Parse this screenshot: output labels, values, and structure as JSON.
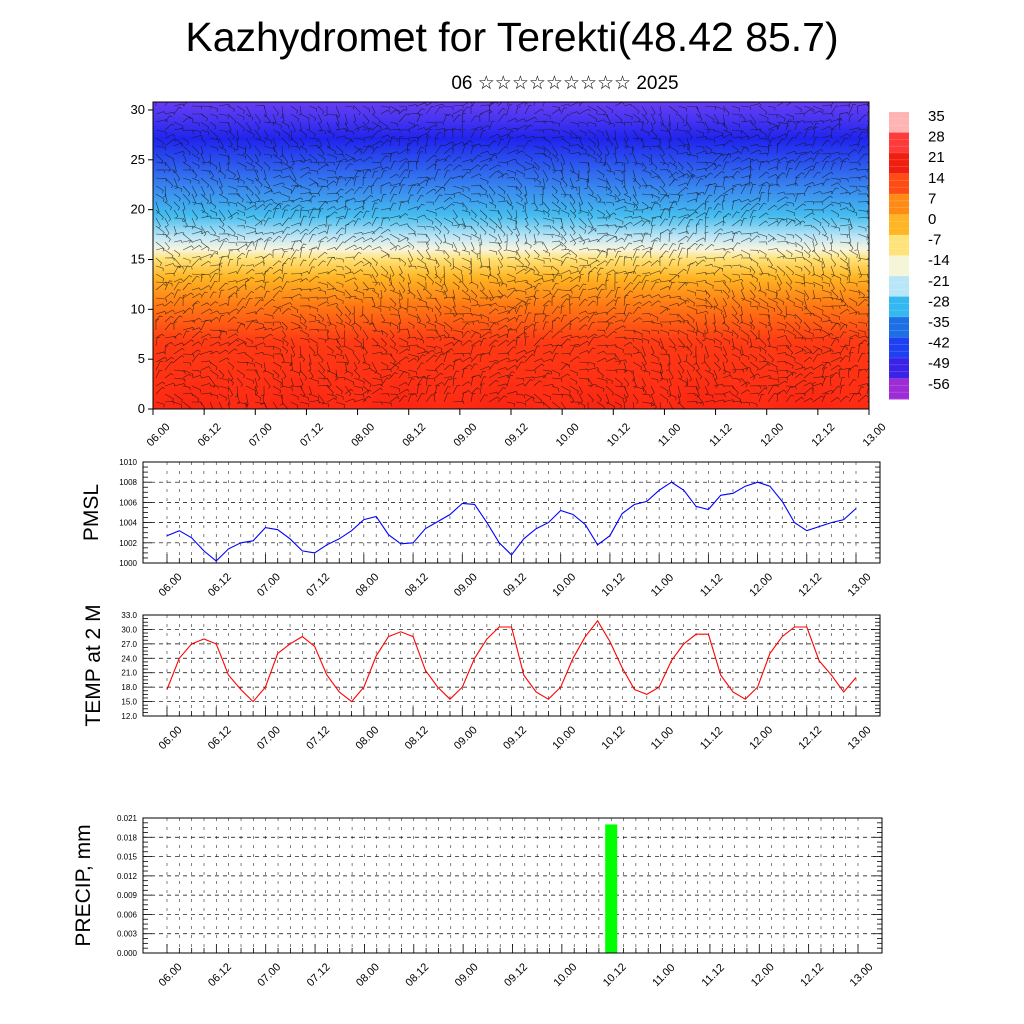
{
  "title": "Kazhydromet for Terekti(48.42 85.7)",
  "subtitle": "06 ☆☆☆☆☆☆☆☆☆ 2025",
  "chart_data": [
    {
      "type": "heatmap",
      "name": "temperature-wind cross section",
      "x_tick_labels": [
        "06.00",
        "06.12",
        "07.00",
        "07.12",
        "08.00",
        "08.12",
        "09.00",
        "09.12",
        "10.00",
        "10.12",
        "11.00",
        "11.12",
        "12.00",
        "12.12",
        "13.00"
      ],
      "y_ticks": [
        0,
        5,
        10,
        15,
        20,
        25,
        30
      ],
      "ylim": [
        0,
        30.8
      ],
      "colorbar_labels": [
        "35",
        "28",
        "21",
        "14",
        "7",
        "0",
        "-7",
        "-14",
        "-21",
        "-28",
        "-35",
        "-42",
        "-49",
        "-56"
      ],
      "colorbar_colors": [
        "#ffb3b3",
        "#ff3a3a",
        "#ef1e0e",
        "#ff4c14",
        "#ff8a14",
        "#ffb524",
        "#ffe37a",
        "#f5f5d8",
        "#b8e6f7",
        "#33b8ef",
        "#1e6ee6",
        "#1f3ff2",
        "#3a22e6",
        "#9d2bd6"
      ]
    },
    {
      "type": "line",
      "ylabel": "PMSL",
      "ylim": [
        1000,
        1010
      ],
      "y_tick_labels": [
        "1000",
        "1002",
        "1004",
        "1006",
        "1008",
        "1010"
      ],
      "x_tick_labels": [
        "06.00",
        "06.12",
        "07.00",
        "07.12",
        "08.00",
        "08.12",
        "09.00",
        "09.12",
        "10.00",
        "10.12",
        "11.00",
        "11.12",
        "12.00",
        "12.12",
        "13.00"
      ],
      "series": [
        {
          "color": "#0000ff",
          "values": [
            1002.7,
            1003.2,
            1002.5,
            1001.2,
            1000.2,
            1001.4,
            1002.0,
            1002.2,
            1003.5,
            1003.3,
            1002.4,
            1001.2,
            1001.0,
            1001.8,
            1002.4,
            1003.2,
            1004.3,
            1004.6,
            1002.8,
            1001.9,
            1002.0,
            1003.4,
            1004.1,
            1004.8,
            1005.9,
            1005.8,
            1004.0,
            1002.0,
            1000.8,
            1002.4,
            1003.4,
            1004.0,
            1005.2,
            1004.8,
            1003.8,
            1001.8,
            1002.7,
            1004.9,
            1005.8,
            1006.1,
            1007.2,
            1008.0,
            1007.2,
            1005.6,
            1005.3,
            1006.7,
            1006.9,
            1007.6,
            1008.0,
            1007.6,
            1006.1,
            1004.0,
            1003.2,
            1003.6,
            1004.0,
            1004.3,
            1005.4
          ]
        }
      ]
    },
    {
      "type": "line",
      "ylabel": "TEMP at 2 M",
      "ylim": [
        12,
        33
      ],
      "y_tick_labels": [
        "12.0",
        "15.0",
        "18.0",
        "21.0",
        "24.0",
        "27.0",
        "30.0",
        "33.0"
      ],
      "x_tick_labels": [
        "06.00",
        "06.12",
        "07.00",
        "07.12",
        "08.00",
        "08.12",
        "09.00",
        "09.12",
        "10.00",
        "10.12",
        "11.00",
        "11.12",
        "12.00",
        "12.12",
        "13.00"
      ],
      "series": [
        {
          "color": "#ff0000",
          "values": [
            17.5,
            24,
            27,
            28,
            27,
            20.5,
            17.5,
            15,
            18,
            25,
            27,
            28.5,
            26.5,
            20.5,
            17,
            15,
            18,
            24.5,
            28.5,
            29.5,
            28.5,
            21.5,
            18,
            15.5,
            18,
            24,
            28,
            30.5,
            30.5,
            20.5,
            17,
            15.5,
            18,
            24,
            28.5,
            31.8,
            27.5,
            22,
            17.5,
            16.5,
            18,
            23.5,
            27,
            29,
            29,
            20.5,
            17,
            15.5,
            18,
            25,
            28.5,
            30.5,
            30.5,
            23.5,
            20.5,
            17,
            20
          ]
        }
      ]
    },
    {
      "type": "bar",
      "ylabel": "PRECIP, mm",
      "ylim": [
        0,
        0.021
      ],
      "y_tick_labels": [
        "0.000",
        "0.003",
        "0.006",
        "0.009",
        "0.012",
        "0.015",
        "0.018",
        "0.021"
      ],
      "x_tick_labels": [
        "06.00",
        "06.12",
        "07.00",
        "07.12",
        "08.00",
        "08.12",
        "09.00",
        "09.12",
        "10.00",
        "10.12",
        "11.00",
        "11.12",
        "12.00",
        "12.12",
        "13.00"
      ],
      "bars": [
        {
          "label": "10.12",
          "value": 0.02,
          "color": "#00ff00"
        }
      ]
    }
  ]
}
